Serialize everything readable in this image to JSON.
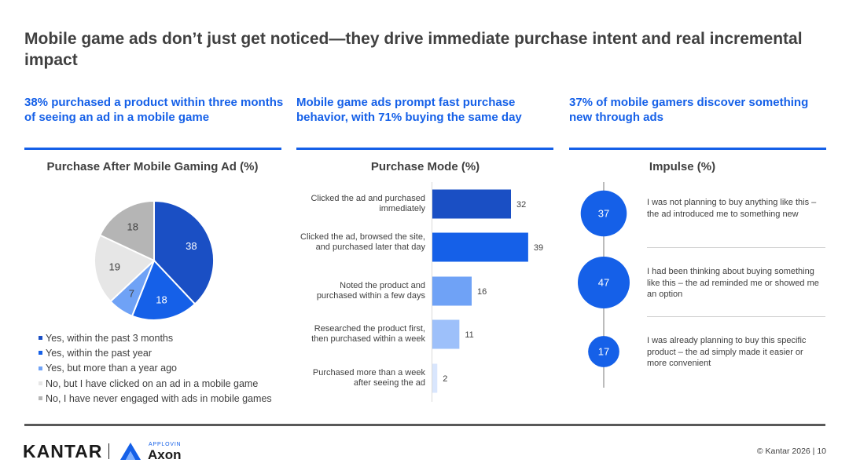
{
  "title": "Mobile game ads don’t just get noticed—they drive immediate purchase intent and real incremental impact",
  "columns": [
    {
      "headline": "38% purchased a product within three months of seeing an ad in a mobile game"
    },
    {
      "headline": "Mobile game ads prompt fast purchase behavior, with 71% buying the same day"
    },
    {
      "headline": "37% of mobile gamers discover something new through ads"
    }
  ],
  "colors": {
    "accent": "#1560e8",
    "dark_blue": "#1a4fc4",
    "mid_blue": "#1560e8",
    "light_blue": "#6fa2f6",
    "pale_gray": "#e6e6e6",
    "gray": "#b5b5b5"
  },
  "chart_data": [
    {
      "type": "pie",
      "title": "Purchase After Mobile Gaming Ad (%)",
      "slices": [
        {
          "label": "Yes, within the past 3 months",
          "value": 38,
          "color": "#1a4fc4"
        },
        {
          "label": "Yes, within the past year",
          "value": 18,
          "color": "#1560e8"
        },
        {
          "label": "Yes, but more than a year ago",
          "value": 7,
          "color": "#6fa2f6"
        },
        {
          "label": "No, but I have clicked on an ad in a mobile game",
          "value": 19,
          "color": "#e6e6e6"
        },
        {
          "label": "No, I have never engaged with ads in mobile games",
          "value": 18,
          "color": "#b5b5b5"
        }
      ]
    },
    {
      "type": "bar",
      "orientation": "horizontal",
      "title": "Purchase Mode (%)",
      "categories": [
        "Clicked the ad and purchased immediately",
        "Clicked the ad, browsed the site, and purchased later that day",
        "Noted the product and purchased within a few days",
        "Researched the product first, then purchased within a week",
        "Purchased more than a week after seeing the ad"
      ],
      "values": [
        32,
        39,
        16,
        11,
        2
      ],
      "colors": [
        "#1a4fc4",
        "#1560e8",
        "#6fa2f6",
        "#9dc0fa",
        "#d9e6fd"
      ],
      "xlim": [
        0,
        40
      ]
    },
    {
      "type": "bubble",
      "title": "Impulse (%)",
      "items": [
        {
          "value": 37,
          "text": " I was not planning to buy anything like this – the ad introduced me to something new"
        },
        {
          "value": 47,
          "text": "I had been thinking about buying something like this – the ad reminded me or showed me an option"
        },
        {
          "value": 17,
          "text": "I was already planning to buy this specific product – the ad simply made it easier or more convenient"
        }
      ]
    }
  ],
  "footer": {
    "brand": "KANTAR",
    "partner_small": "APPLOVIN",
    "partner": "Axon",
    "copyright": "© Kantar 2026 | 10"
  }
}
